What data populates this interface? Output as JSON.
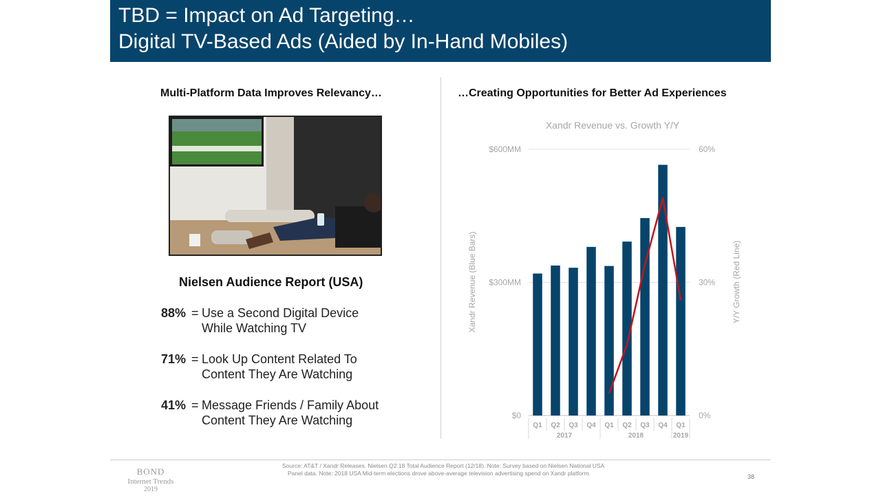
{
  "slide": {
    "title_line1": "TBD = Impact on Ad Targeting…",
    "title_line2": "Digital TV-Based Ads (Aided by In-Hand Mobiles)",
    "left_heading": "Multi-Platform Data Improves Relevancy…",
    "right_heading": "…Creating Opportunities for Better Ad Experiences",
    "photo_description": "Person on couch using phone while watching baseball on TV",
    "report_title": "Nielsen Audience Report (USA)",
    "stats": [
      {
        "pct": "88%",
        "eq": "=",
        "line1": "Use a Second Digital Device",
        "line2": "While Watching TV"
      },
      {
        "pct": "71%",
        "eq": "=",
        "line1": "Look Up Content Related To",
        "line2": "Content They Are Watching"
      },
      {
        "pct": "41%",
        "eq": "=",
        "line1": "Message Friends / Family About",
        "line2": "Content They Are Watching"
      }
    ],
    "footer": {
      "brand1": "BOND",
      "brand2": "Internet Trends",
      "brand3": "2019",
      "source_line1": "Source: AT&T / Xandr Releases. Nielsen Q2:18 Total Audience Report (12/18). Note: Survey based on Nielsen National USA",
      "source_line2": "Panel data.  Note: 2018 USA Mid-term elections drove above-average television advertising spend on Xandr platform.",
      "page_number": "38"
    }
  },
  "colors": {
    "title_bg": "#07446b",
    "bar": "#07446b",
    "line": "#c0161d",
    "axis_text": "#a6a6a6"
  },
  "chart_data": {
    "type": "bar",
    "title": "Xandr Revenue vs. Growth Y/Y",
    "categories": [
      "Q1",
      "Q2",
      "Q3",
      "Q4",
      "Q1",
      "Q2",
      "Q3",
      "Q4",
      "Q1"
    ],
    "year_groups": [
      {
        "label": "2017",
        "start": 0,
        "end": 3
      },
      {
        "label": "2018",
        "start": 4,
        "end": 7
      },
      {
        "label": "2019",
        "start": 8,
        "end": 8
      }
    ],
    "series": [
      {
        "name": "Xandr Revenue",
        "axis": "left",
        "type": "bar",
        "values": [
          320,
          338,
          333,
          380,
          337,
          392,
          445,
          565,
          425
        ]
      },
      {
        "name": "Y/Y Growth",
        "axis": "right",
        "type": "line",
        "values": [
          null,
          null,
          null,
          null,
          5,
          16,
          34,
          49,
          26
        ]
      }
    ],
    "ylabel": "Xandr Revenue (Blue Bars)",
    "y2label": "Y/Y Growth (Red Line)",
    "ylim": [
      0,
      600
    ],
    "y2lim": [
      0,
      60
    ],
    "yticks": [
      0,
      300,
      600
    ],
    "ytick_labels": [
      "$0",
      "$300MM",
      "$600MM"
    ],
    "y2ticks": [
      0,
      30,
      60
    ],
    "y2tick_labels": [
      "0%",
      "30%",
      "60%"
    ],
    "grid": true
  }
}
